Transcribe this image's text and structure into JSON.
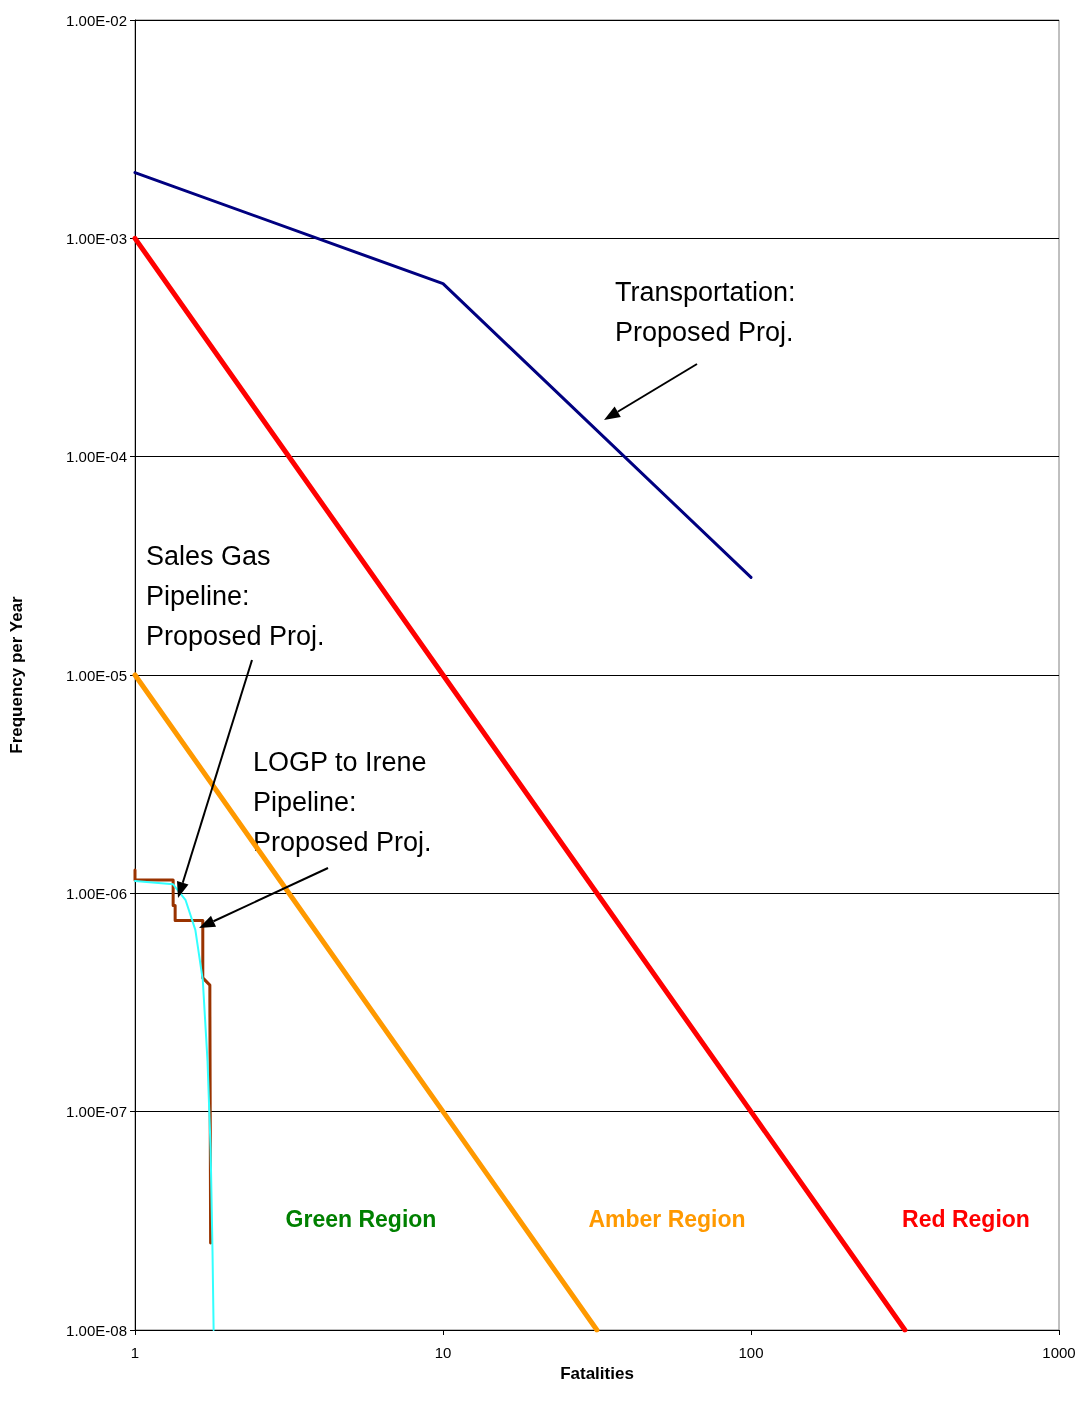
{
  "chart_data": {
    "type": "line",
    "xlabel": "Fatalities",
    "ylabel": "Frequency per Year",
    "log": "xy",
    "grid": "y",
    "marker": "none",
    "line_style": "solid",
    "xlim": [
      1,
      1000
    ],
    "xticks": [
      1,
      10,
      100,
      1000
    ],
    "ylim": [
      1e-08,
      0.01
    ],
    "yticks": [
      {
        "value": 1e-08,
        "label": "1.00E-08"
      },
      {
        "value": 1e-07,
        "label": "1.00E-07"
      },
      {
        "value": 1e-06,
        "label": "1.00E-06"
      },
      {
        "value": 1e-05,
        "label": "1.00E-05"
      },
      {
        "value": 0.0001,
        "label": "1.00E-04"
      },
      {
        "value": 0.001,
        "label": "1.00E-03"
      },
      {
        "value": 0.01,
        "label": "1.00E-02"
      }
    ],
    "series": [
      {
        "color": "#ff0000",
        "x": [
          1,
          10,
          100,
          316
        ],
        "values": [
          0.001,
          1e-05,
          1e-07,
          1e-08
        ]
      },
      {
        "color": "#ff9900",
        "x": [
          1,
          10,
          31.6
        ],
        "values": [
          1e-05,
          1e-07,
          1e-08
        ]
      },
      {
        "color": "#000080",
        "x": [
          1,
          10,
          100
        ],
        "values": [
          0.002,
          0.00062,
          2.8e-05
        ]
      },
      {
        "color": "#993300",
        "type": "step",
        "x": [
          1,
          1,
          1.33,
          1.33,
          1.35,
          1.35,
          1.66,
          1.66,
          1.75,
          1.75,
          1.76
        ],
        "values": [
          1.28e-06,
          1.15e-06,
          1.15e-06,
          8.8e-07,
          8.8e-07,
          7.5e-07,
          7.5e-07,
          4.1e-07,
          3.8e-07,
          3.3e-07,
          2.5e-08
        ]
      },
      {
        "color": "#33ffff",
        "x": [
          1,
          1.33,
          1.46,
          1.57,
          1.66,
          1.72,
          1.76,
          1.785,
          1.8
        ],
        "values": [
          1.14e-06,
          1.1e-06,
          9.3e-07,
          6.8e-07,
          4e-07,
          1.7e-07,
          6.7e-08,
          2.3e-08,
          1e-08
        ]
      }
    ],
    "annotations": [
      "Transportation: Proposed Proj.",
      "Sales Gas Pipeline: Proposed Proj.",
      "LOGP to Irene Pipeline: Proposed Proj.",
      "Green Region",
      "Amber Region",
      "Red Region"
    ]
  }
}
